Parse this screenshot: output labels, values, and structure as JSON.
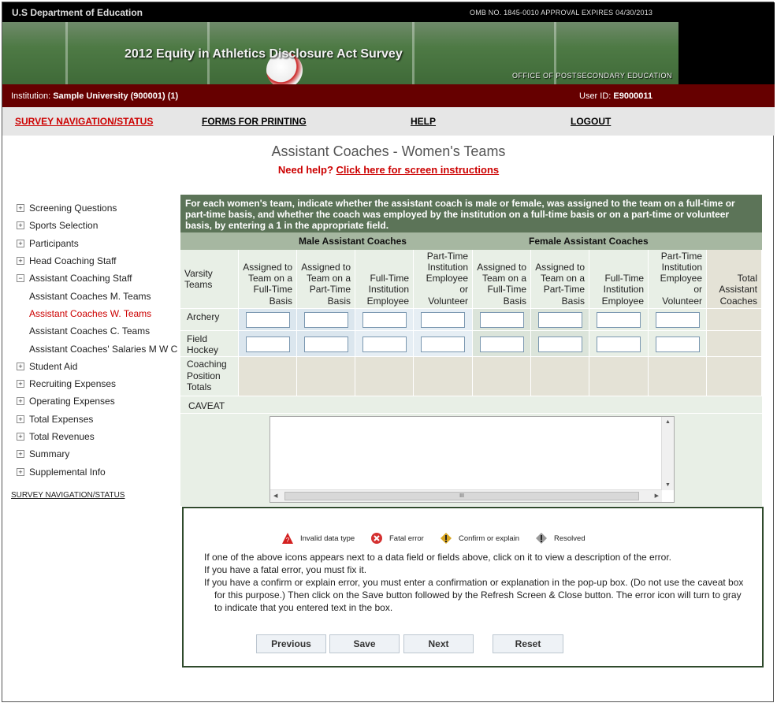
{
  "header": {
    "department": "U.S Department of Education",
    "omb": "OMB NO. 1845-0010 APPROVAL EXPIRES 04/30/2013",
    "banner_title": "2012 Equity in Athletics Disclosure Act Survey",
    "office": "OFFICE OF POSTSECONDARY EDUCATION"
  },
  "institution": {
    "label": "Institution: ",
    "value": "Sample University (900001) (1)",
    "user_label": "User ID: ",
    "user_value": "E9000011"
  },
  "nav": [
    "SURVEY NAVIGATION/STATUS",
    "FORMS FOR PRINTING",
    "HELP",
    "LOGOUT"
  ],
  "page": {
    "title": "Assistant Coaches - Women's Teams",
    "help_prefix": "Need help? ",
    "help_link": "Click here for screen instructions"
  },
  "sidebar": {
    "items": [
      {
        "label": "Screening Questions",
        "type": "plus"
      },
      {
        "label": "Sports Selection",
        "type": "plus"
      },
      {
        "label": "Participants",
        "type": "plus"
      },
      {
        "label": "Head Coaching Staff",
        "type": "plus"
      },
      {
        "label": "Assistant Coaching Staff",
        "type": "minus"
      },
      {
        "label": "Assistant Coaches M. Teams",
        "type": "sub"
      },
      {
        "label": "Assistant Coaches W. Teams",
        "type": "sub-active"
      },
      {
        "label": "Assistant Coaches C. Teams",
        "type": "sub"
      },
      {
        "label": "Assistant Coaches' Salaries M W C",
        "type": "sub"
      },
      {
        "label": "Student Aid",
        "type": "plus"
      },
      {
        "label": "Recruiting Expenses",
        "type": "plus"
      },
      {
        "label": "Operating Expenses",
        "type": "plus"
      },
      {
        "label": "Total Expenses",
        "type": "plus"
      },
      {
        "label": "Total Revenues",
        "type": "plus"
      },
      {
        "label": "Summary",
        "type": "plus"
      },
      {
        "label": "Supplemental Info",
        "type": "plus"
      }
    ],
    "bottom_link": "SURVEY NAVIGATION/STATUS"
  },
  "form": {
    "instructions": "For each women's team, indicate whether the assistant coach is male or female, was assigned to the team on a full-time or part-time basis, and whether the coach was employed by the institution on a full-time basis or on a part-time or volunteer basis, by entering a 1 in the appropriate field.",
    "group_male": "Male Assistant Coaches",
    "group_female": "Female Assistant Coaches",
    "row_header": "Varsity Teams",
    "columns": [
      "Assigned to Team on a Full-Time Basis",
      "Assigned to Team on a Part-Time Basis",
      "Full-Time Institution Employee",
      "Part-Time Institution Employee or Volunteer",
      "Assigned to Team on a Full-Time Basis",
      "Assigned to Team on a Part-Time Basis",
      "Full-Time Institution Employee",
      "Part-Time Institution Employee or Volunteer",
      "Total Assistant Coaches"
    ],
    "rows": [
      {
        "team": "Archery",
        "values": [
          "",
          "",
          "",
          "",
          "",
          "",
          "",
          ""
        ]
      },
      {
        "team": "Field Hockey",
        "values": [
          "",
          "",
          "",
          "",
          "",
          "",
          "",
          ""
        ]
      }
    ],
    "totals_label": "Coaching Position Totals",
    "caveat_label": "CAVEAT",
    "caveat_value": ""
  },
  "legend": {
    "items": [
      {
        "icon": "invalid-data-type-icon",
        "label": "Invalid data type",
        "color": "#d32020"
      },
      {
        "icon": "fatal-error-icon",
        "label": "Fatal error",
        "color": "#d43030"
      },
      {
        "icon": "confirm-explain-icon",
        "label": "Confirm or explain",
        "color": "#d8a520"
      },
      {
        "icon": "resolved-icon",
        "label": "Resolved",
        "color": "#999999"
      }
    ],
    "p1": "If one of the above icons appears next to a data field or fields above, click on it to view a description of the error.",
    "p2": "If you have a fatal error, you must fix it.",
    "p3": "If you have a confirm or explain error, you must enter a confirmation or explanation in the pop-up box. (Do not use the caveat box for this purpose.) Then click on the Save button followed by the Refresh Screen & Close button. The error icon will turn to gray to indicate that you entered text in the box."
  },
  "buttons": {
    "previous": "Previous",
    "save": "Save",
    "next": "Next",
    "reset": "Reset"
  },
  "colors": {
    "maroon": "#660000",
    "instr_green": "#5c7458",
    "link_red": "#cc0000"
  }
}
